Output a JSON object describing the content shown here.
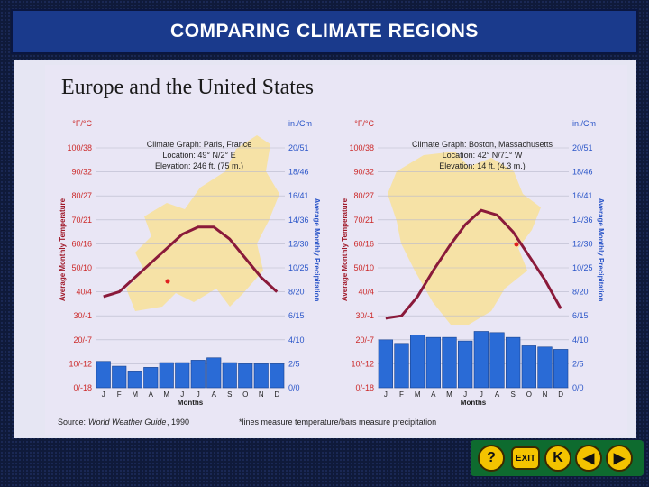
{
  "header": {
    "title": "COMPARING CLIMATE REGIONS"
  },
  "heading": "Europe and the United States",
  "footer": {
    "source_label": "Source:",
    "source_text": "World Weather Guide",
    "source_year": ", 1990",
    "note": "*lines measure temperature/bars measure precipitation"
  },
  "nav": {
    "help": "?",
    "exit": "EXIT",
    "first": "K",
    "prev": "◀",
    "next": "▶"
  },
  "colors": {
    "bar": "#2a6bd6",
    "line": "#8a1a3a",
    "land": "#f6e2a6",
    "frame": "#0f1a3a",
    "accent": "#1a3a8c"
  },
  "chart_data": [
    {
      "type": "bar",
      "title": "Climate Graph:  Paris, France",
      "location": "Location:  49° N/2° E",
      "elevation": "Elevation:  246 ft. (75 m.)",
      "xlabel": "Months",
      "ylabel_left": "Average Monthly Temperature",
      "ylabel_right": "Average Monthly Precipitation",
      "left_unit": "°F/°C",
      "right_unit": "in./Cm",
      "left_ticks": [
        "0/-18",
        "10/-12",
        "20/-7",
        "30/-1",
        "40/4",
        "50/10",
        "60/16",
        "70/21",
        "80/27",
        "90/32",
        "100/38"
      ],
      "right_ticks": [
        "0/0",
        "2/5",
        "4/10",
        "6/15",
        "8/20",
        "10/25",
        "12/30",
        "14/36",
        "16/41",
        "18/46",
        "20/51"
      ],
      "categories": [
        "J",
        "F",
        "M",
        "A",
        "M",
        "J",
        "J",
        "A",
        "S",
        "O",
        "N",
        "D"
      ],
      "precip_in": [
        2.2,
        1.8,
        1.4,
        1.7,
        2.1,
        2.1,
        2.3,
        2.5,
        2.1,
        2.0,
        2.0,
        2.0
      ],
      "temp_f": [
        38,
        40,
        46,
        52,
        58,
        64,
        67,
        67,
        62,
        54,
        46,
        40
      ],
      "left_range": [
        0,
        100
      ],
      "right_range": [
        0,
        20
      ]
    },
    {
      "type": "bar",
      "title": "Climate Graph:  Boston, Massachusetts",
      "location": "Location:  42° N/71° W",
      "elevation": "Elevation:  14 ft. (4.3 m.)",
      "xlabel": "Months",
      "ylabel_left": "Average Monthly Temperature",
      "ylabel_right": "Average Monthly Precipitation",
      "left_unit": "°F/°C",
      "right_unit": "in./Cm",
      "left_ticks": [
        "0/-18",
        "10/-12",
        "20/-7",
        "30/-1",
        "40/4",
        "50/10",
        "60/16",
        "70/21",
        "80/27",
        "90/32",
        "100/38"
      ],
      "right_ticks": [
        "0/0",
        "2/5",
        "4/10",
        "6/15",
        "8/20",
        "10/25",
        "12/30",
        "14/36",
        "16/41",
        "18/46",
        "20/51"
      ],
      "categories": [
        "J",
        "F",
        "M",
        "A",
        "M",
        "J",
        "J",
        "A",
        "S",
        "O",
        "N",
        "D"
      ],
      "precip_in": [
        4.0,
        3.7,
        4.4,
        4.2,
        4.2,
        3.9,
        4.7,
        4.6,
        4.2,
        3.5,
        3.4,
        3.2
      ],
      "temp_f": [
        29,
        30,
        38,
        49,
        59,
        68,
        74,
        72,
        65,
        55,
        45,
        33
      ],
      "left_range": [
        0,
        100
      ],
      "right_range": [
        0,
        20
      ]
    }
  ]
}
